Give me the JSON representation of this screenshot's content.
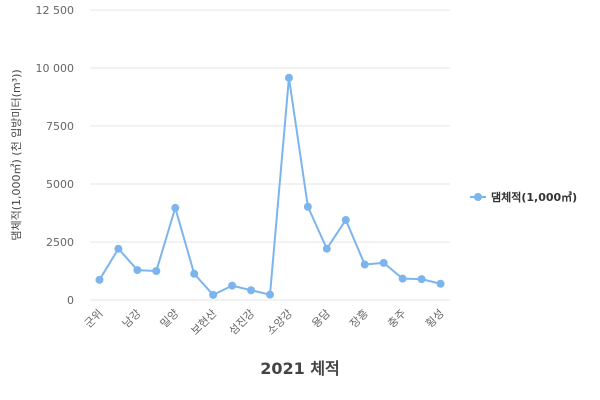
{
  "chart_data": {
    "type": "line",
    "xlabel": "2021 체적",
    "ylabel": "댐체적(1,000㎥) (천 입방미터(m³))",
    "ylim": [
      0,
      12500
    ],
    "yticks": [
      {
        "value": 0,
        "label": "0"
      },
      {
        "value": 2500,
        "label": "2500"
      },
      {
        "value": 5000,
        "label": "5000"
      },
      {
        "value": 7500,
        "label": "7500"
      },
      {
        "value": 10000,
        "label": "10 000"
      },
      {
        "value": 12500,
        "label": "12 500"
      }
    ],
    "grid": true,
    "legend_position": "right",
    "categories": [
      "군위",
      "",
      "남강",
      "",
      "밀양",
      "",
      "보현산",
      "",
      "섬진강",
      "",
      "소양강",
      "",
      "용담",
      "",
      "장흥",
      "",
      "충주",
      "",
      "횡성"
    ],
    "series": [
      {
        "name": "댐체적(1,000㎥)",
        "color": "#7cb5ec",
        "values": [
          870,
          2210,
          1290,
          1250,
          3970,
          1130,
          220,
          620,
          420,
          230,
          9580,
          4020,
          2210,
          3450,
          1530,
          1600,
          920,
          900,
          700
        ]
      }
    ]
  }
}
